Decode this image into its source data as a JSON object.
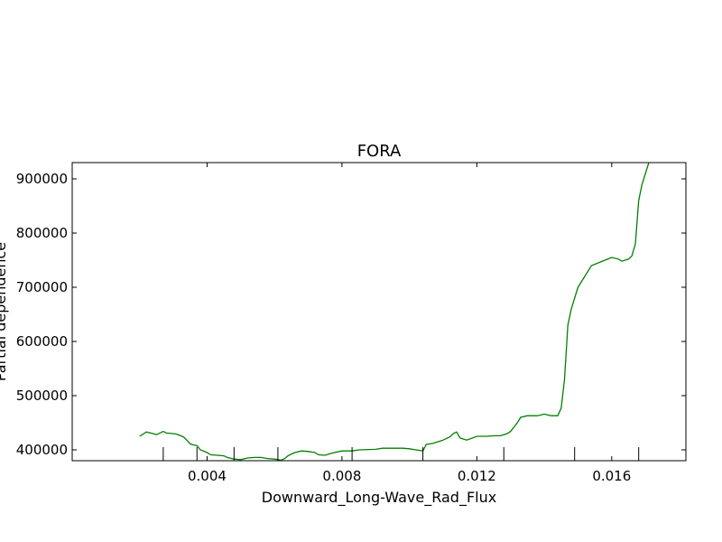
{
  "chart_data": {
    "type": "line",
    "title": "FORA",
    "xlabel": "Downward_Long-Wave_Rad_Flux",
    "ylabel": "Partial dependence",
    "xlim": [
      0.0,
      0.0182
    ],
    "ylim": [
      380000,
      930000
    ],
    "grid": false,
    "x_ticks": [
      0.004,
      0.008,
      0.012,
      0.016
    ],
    "x_tick_labels": [
      "0.004",
      "0.008",
      "0.012",
      "0.016"
    ],
    "y_ticks": [
      400000,
      500000,
      600000,
      700000,
      800000,
      900000
    ],
    "y_tick_labels": [
      "400000",
      "500000",
      "600000",
      "700000",
      "800000",
      "900000"
    ],
    "rug_x": [
      0.0027,
      0.0037,
      0.0048,
      0.0061,
      0.0083,
      0.0104,
      0.0128,
      0.0149,
      0.0168
    ],
    "series": [
      {
        "color": "#008000",
        "x": [
          0.002,
          0.0022,
          0.0024,
          0.0025,
          0.0027,
          0.0028,
          0.003,
          0.0031,
          0.0033,
          0.0034,
          0.0035,
          0.0036,
          0.0037,
          0.0038,
          0.004,
          0.0041,
          0.0043,
          0.0045,
          0.0046,
          0.0048,
          0.005,
          0.0052,
          0.0054,
          0.0056,
          0.0058,
          0.006,
          0.0062,
          0.0063,
          0.0064,
          0.0066,
          0.0068,
          0.007,
          0.0071,
          0.0072,
          0.0073,
          0.0075,
          0.0077,
          0.008,
          0.0083,
          0.0085,
          0.009,
          0.0092,
          0.0095,
          0.0098,
          0.01,
          0.0102,
          0.0104,
          0.0105,
          0.0107,
          0.0109,
          0.011,
          0.0112,
          0.0113,
          0.0114,
          0.0115,
          0.0117,
          0.012,
          0.0123,
          0.0125,
          0.0127,
          0.0129,
          0.013,
          0.0132,
          0.0133,
          0.0135,
          0.0138,
          0.014,
          0.0142,
          0.0144,
          0.0145,
          0.0146,
          0.0147,
          0.0148,
          0.0149,
          0.015,
          0.0152,
          0.0154,
          0.0156,
          0.0158,
          0.016,
          0.0162,
          0.0163,
          0.0165,
          0.0166,
          0.0167,
          0.0168,
          0.0169,
          0.017,
          0.0171,
          0.0173,
          0.0175
        ],
        "y": [
          425000,
          433000,
          430000,
          428000,
          434000,
          431000,
          430000,
          429000,
          424000,
          418000,
          411000,
          409000,
          408000,
          400000,
          395000,
          391000,
          390000,
          389000,
          386000,
          383000,
          382000,
          385000,
          386000,
          386000,
          384000,
          383000,
          381000,
          384000,
          389000,
          395000,
          398000,
          397000,
          396000,
          395000,
          391000,
          390000,
          394000,
          398000,
          398000,
          400000,
          401000,
          403000,
          403000,
          403000,
          402000,
          400000,
          398000,
          410000,
          412000,
          416000,
          418000,
          424000,
          430000,
          433000,
          422000,
          418000,
          425000,
          425000,
          426000,
          426000,
          430000,
          434000,
          450000,
          460000,
          463000,
          463000,
          466000,
          463000,
          463000,
          477000,
          530000,
          630000,
          660000,
          680000,
          700000,
          720000,
          740000,
          745000,
          750000,
          755000,
          752000,
          748000,
          752000,
          758000,
          780000,
          860000,
          890000,
          910000,
          930000,
          940000,
          945000
        ]
      }
    ]
  }
}
